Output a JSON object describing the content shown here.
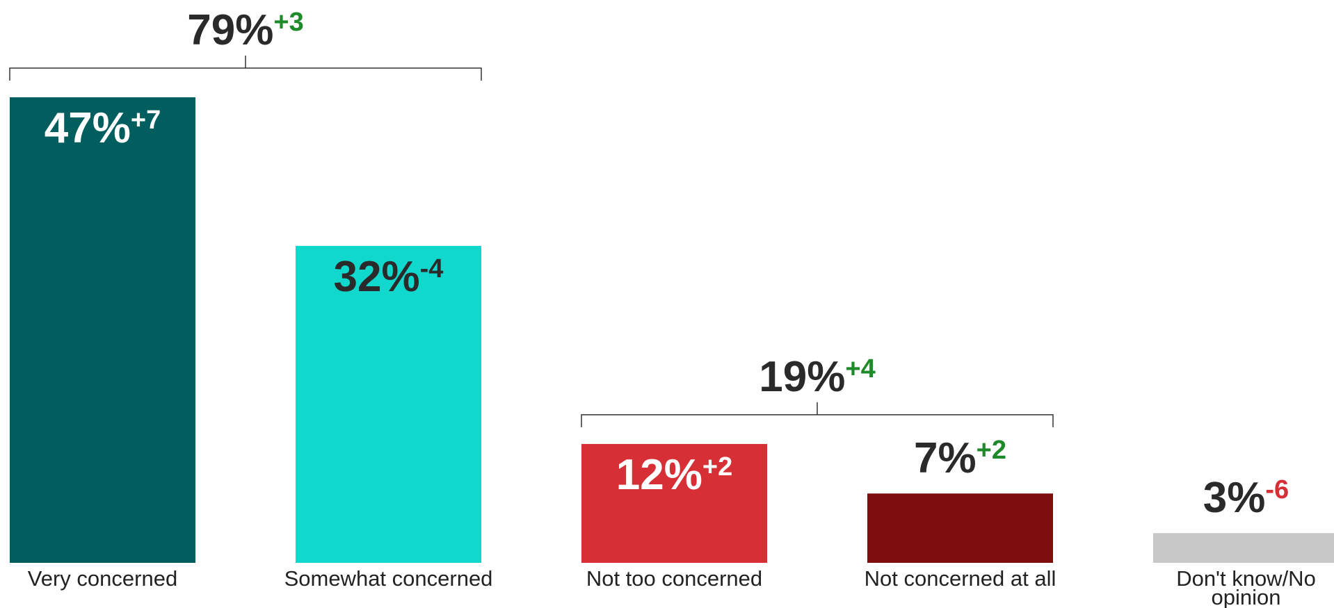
{
  "chart_data": {
    "type": "bar",
    "title": "",
    "xlabel": "",
    "ylabel": "",
    "ylim": [
      0,
      50
    ],
    "categories": [
      [
        "Very concerned"
      ],
      [
        "Somewhat concerned"
      ],
      [
        "Not too concerned"
      ],
      [
        "Not concerned at all"
      ],
      [
        "Don't know/No",
        "opinion"
      ]
    ],
    "values": [
      47,
      32,
      12,
      7,
      3
    ],
    "value_labels": [
      "47%",
      "32%",
      "12%",
      "7%",
      "3%"
    ],
    "changes": [
      "+7",
      "-4",
      "+2",
      "+2",
      "-6"
    ],
    "bar_colors": [
      "#005e5e",
      "#10d8cc",
      "#d62f35",
      "#7d0e10",
      "#c8c8c8"
    ],
    "label_inside": [
      true,
      true,
      true,
      false,
      false
    ],
    "label_colors": [
      "#ffffff",
      "#2a2a2a",
      "#ffffff",
      "#2a2a2a",
      "#2a2a2a"
    ],
    "change_colors": [
      "#ffffff",
      "#2a2a2a",
      "#ffffff",
      "#1e8a2a",
      "#d62f35"
    ],
    "groups": [
      {
        "members": [
          0,
          1
        ],
        "value": 79,
        "label": "79%",
        "change": "+3",
        "change_color": "#1e8a2a"
      },
      {
        "members": [
          2,
          3
        ],
        "value": 19,
        "label": "19%",
        "change": "+4",
        "change_color": "#1e8a2a"
      }
    ],
    "grid": false,
    "legend": "none"
  }
}
